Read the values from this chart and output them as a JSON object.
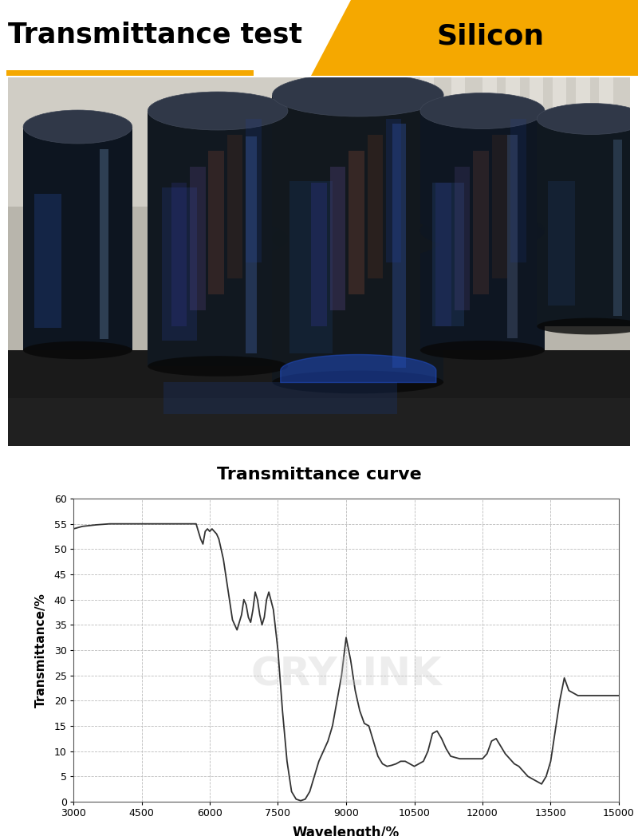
{
  "title_left": "Transmittance test",
  "title_right": "Silicon",
  "subtitle": "Transmittance curve",
  "xlabel": "Wavelength/%",
  "ylabel": "Transmittance/%",
  "xlim": [
    3000,
    15000
  ],
  "ylim": [
    0,
    60
  ],
  "xticks": [
    3000,
    4500,
    6000,
    7500,
    9000,
    10500,
    12000,
    13500,
    15000
  ],
  "yticks": [
    0,
    5,
    10,
    15,
    20,
    25,
    30,
    35,
    40,
    45,
    50,
    55,
    60
  ],
  "header_bar_color": "#F5A800",
  "curve_color": "#333333",
  "grid_color": "#bbbbbb",
  "background_color": "#ffffff",
  "watermark_text": "CRYLINK",
  "curve_x": [
    3000,
    3200,
    3500,
    3800,
    4000,
    4200,
    4500,
    4800,
    5000,
    5200,
    5500,
    5700,
    5800,
    5850,
    5900,
    5950,
    6000,
    6050,
    6100,
    6150,
    6200,
    6300,
    6400,
    6500,
    6600,
    6700,
    6750,
    6800,
    6850,
    6900,
    6950,
    7000,
    7050,
    7100,
    7150,
    7200,
    7250,
    7300,
    7400,
    7500,
    7600,
    7700,
    7800,
    7900,
    8000,
    8100,
    8200,
    8300,
    8400,
    8500,
    8600,
    8700,
    8800,
    8900,
    9000,
    9100,
    9200,
    9300,
    9400,
    9500,
    9600,
    9700,
    9800,
    9900,
    10000,
    10100,
    10200,
    10300,
    10400,
    10500,
    10600,
    10700,
    10800,
    10900,
    11000,
    11100,
    11200,
    11300,
    11500,
    11700,
    11800,
    11900,
    12000,
    12100,
    12200,
    12300,
    12400,
    12500,
    12600,
    12700,
    12800,
    12900,
    13000,
    13100,
    13200,
    13300,
    13400,
    13500,
    13600,
    13700,
    13800,
    13900,
    14000,
    14100,
    14200,
    14300,
    14500,
    14700,
    14900,
    15000
  ],
  "curve_y": [
    54.0,
    54.5,
    54.8,
    55.0,
    55.0,
    55.0,
    55.0,
    55.0,
    55.0,
    55.0,
    55.0,
    55.0,
    52.0,
    51.0,
    53.5,
    54.0,
    53.5,
    54.0,
    53.5,
    53.0,
    52.0,
    48.0,
    42.0,
    36.0,
    34.0,
    37.0,
    40.0,
    39.0,
    36.5,
    35.5,
    38.0,
    41.5,
    40.0,
    37.0,
    35.0,
    36.5,
    40.0,
    41.5,
    38.0,
    30.0,
    18.0,
    8.0,
    2.0,
    0.5,
    0.2,
    0.5,
    2.0,
    5.0,
    8.0,
    10.0,
    12.0,
    15.0,
    20.0,
    25.0,
    32.5,
    28.0,
    22.0,
    18.0,
    15.5,
    15.0,
    12.0,
    9.0,
    7.5,
    7.0,
    7.2,
    7.5,
    8.0,
    8.0,
    7.5,
    7.0,
    7.5,
    8.0,
    10.0,
    13.5,
    14.0,
    12.5,
    10.5,
    9.0,
    8.5,
    8.5,
    8.5,
    8.5,
    8.5,
    9.5,
    12.0,
    12.5,
    11.0,
    9.5,
    8.5,
    7.5,
    7.0,
    6.0,
    5.0,
    4.5,
    4.0,
    3.5,
    5.0,
    8.0,
    14.0,
    20.0,
    24.5,
    22.0,
    21.5,
    21.0,
    21.0,
    21.0,
    21.0,
    21.0,
    21.0,
    21.0
  ],
  "photo_floor_color": "#2a2a2a",
  "photo_bg_color": "#c8c0b0",
  "lens_dark": "#111820",
  "lens_blue": "#1a3a6a",
  "lens_highlight": "#4a7ab5"
}
